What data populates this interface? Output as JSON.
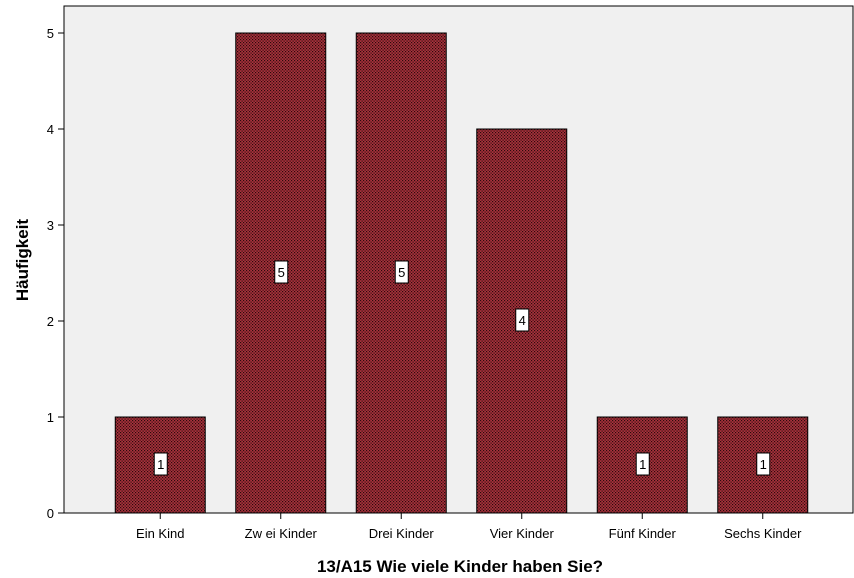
{
  "chart_data": {
    "type": "bar",
    "categories": [
      "Ein Kind",
      "Zw ei Kinder",
      "Drei Kinder",
      "Vier Kinder",
      "Fünf Kinder",
      "Sechs Kinder"
    ],
    "values": [
      1,
      5,
      5,
      4,
      1,
      1
    ],
    "data_labels": [
      "1",
      "5",
      "5",
      "4",
      "1",
      "1"
    ],
    "xlabel": "13/A15 Wie viele Kinder haben Sie?",
    "ylabel": "Häufigkeit",
    "ylim": [
      0,
      5
    ],
    "yticks": [
      0,
      1,
      2,
      3,
      4,
      5
    ],
    "grid": false,
    "colors": {
      "bar_fill": "#a8323c",
      "bar_pattern_dot": "#2a0a0c",
      "plot_background": "#f0f0f0",
      "axis": "#000000"
    }
  }
}
